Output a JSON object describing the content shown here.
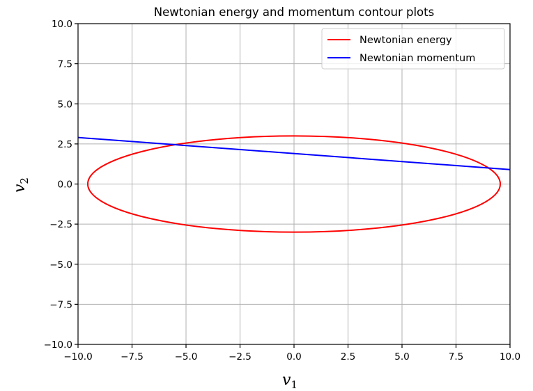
{
  "chart_data": {
    "type": "line",
    "title": "Newtonian energy and momentum contour plots",
    "xlabel": "v",
    "xlabel_sub": "1",
    "ylabel": "v",
    "ylabel_sub": "2",
    "xlim": [
      -10.0,
      10.0
    ],
    "ylim": [
      -10.0,
      10.0
    ],
    "xticks": [
      -10.0,
      -7.5,
      -5.0,
      -2.5,
      0.0,
      2.5,
      5.0,
      7.5,
      10.0
    ],
    "yticks": [
      -10.0,
      -7.5,
      -5.0,
      -2.5,
      0.0,
      2.5,
      5.0,
      7.5,
      10.0
    ],
    "xtick_labels": [
      "−10.0",
      "−7.5",
      "−5.0",
      "−2.5",
      "0.0",
      "2.5",
      "5.0",
      "7.5",
      "10.0"
    ],
    "ytick_labels": [
      "−10.0",
      "−7.5",
      "−5.0",
      "−2.5",
      "0.0",
      "2.5",
      "5.0",
      "7.5",
      "10.0"
    ],
    "grid": true,
    "legend_position": "top-right",
    "series": [
      {
        "name": "Newtonian energy",
        "color": "#ff0000",
        "kind": "ellipse",
        "center": [
          0.0,
          0.0
        ],
        "semi_axes": [
          9.55,
          3.0
        ]
      },
      {
        "name": "Newtonian momentum",
        "color": "#0000ff",
        "kind": "line",
        "x": [
          -10.0,
          10.0
        ],
        "y": [
          2.9,
          0.9
        ]
      }
    ]
  }
}
